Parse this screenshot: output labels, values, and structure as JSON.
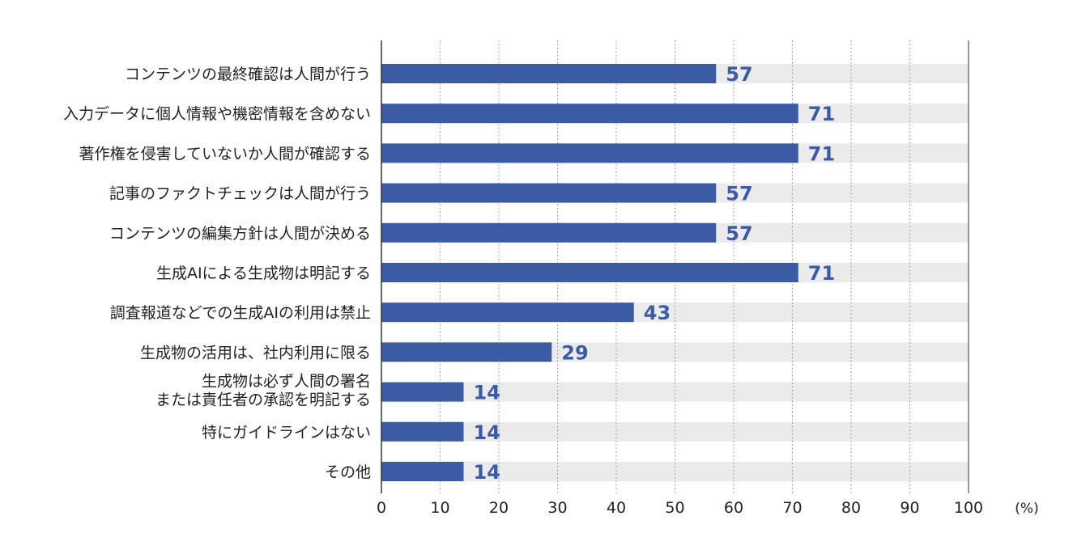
{
  "chart_data": {
    "type": "bar",
    "orientation": "horizontal",
    "categories": [
      "コンテンツの最終確認は人間が行う",
      "入力データに個人情報や機密情報を含めない",
      "著作権を侵害していないか人間が確認する",
      "記事のファクトチェックは人間が行う",
      "コンテンツの編集方針は人間が決める",
      "生成AIによる生成物は明記する",
      "調査報道などでの生成AIの利用は禁止",
      "生成物の活用は、社内利用に限る",
      "生成物は必ず人間の署名\nまたは責任者の承認を明記する",
      "特にガイドラインはない",
      "その他"
    ],
    "values": [
      57,
      71,
      71,
      57,
      57,
      71,
      43,
      29,
      14,
      14,
      14
    ],
    "xlim": [
      0,
      100
    ],
    "xticks": [
      "0",
      "10",
      "20",
      "30",
      "40",
      "50",
      "60",
      "70",
      "80",
      "90",
      "100"
    ],
    "unit": "(%)",
    "grid": true,
    "colors": {
      "bar": "#3b5ba5",
      "track": "#ebebeb",
      "value_text": "#3b5ba5",
      "grid": "#888888"
    }
  }
}
